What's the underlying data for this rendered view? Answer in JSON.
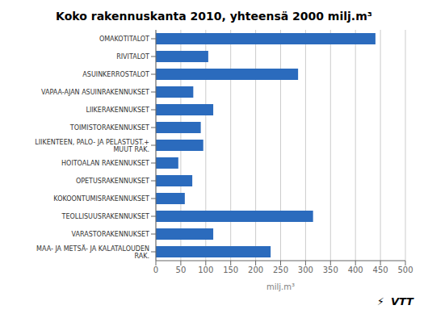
{
  "chart_data": {
    "type": "bar",
    "orientation": "horizontal",
    "title": "Koko rakennuskanta 2010, yhteensä 2000 milj.m³",
    "categories": [
      "OMAKOTITALOT",
      "RIVITALOT",
      "ASUINKERROSTALOT",
      "VAPAA-AJAN ASUINRAKENNUKSET",
      "LIIKERAKENNUKSET",
      "TOIMISTORAKENNUKSET",
      "LIIKENTEEN, PALO- JA PELASTUST.+\nMUUT RAK.",
      "HOITOALAN RAKENNUKSET",
      "OPETUSRAKENNUKSET",
      "KOKOONTUMISRAKENNUKSET",
      "TEOLLISUUSRAKENNUKSET",
      "VARASTORAKENNUKSET",
      "MAA- JA METSÄ- JA KALATALOUDEN\nRAK."
    ],
    "values": [
      440,
      105,
      285,
      75,
      115,
      90,
      95,
      45,
      73,
      58,
      315,
      115,
      230
    ],
    "color": "#2B6BBD",
    "xlabel": "milj.m³",
    "xlim": [
      0,
      500
    ],
    "xticks": [
      0,
      50,
      100,
      150,
      200,
      250,
      300,
      350,
      400,
      450,
      500
    ],
    "grid": true,
    "annotations": [
      "⚡",
      "VTT"
    ]
  }
}
